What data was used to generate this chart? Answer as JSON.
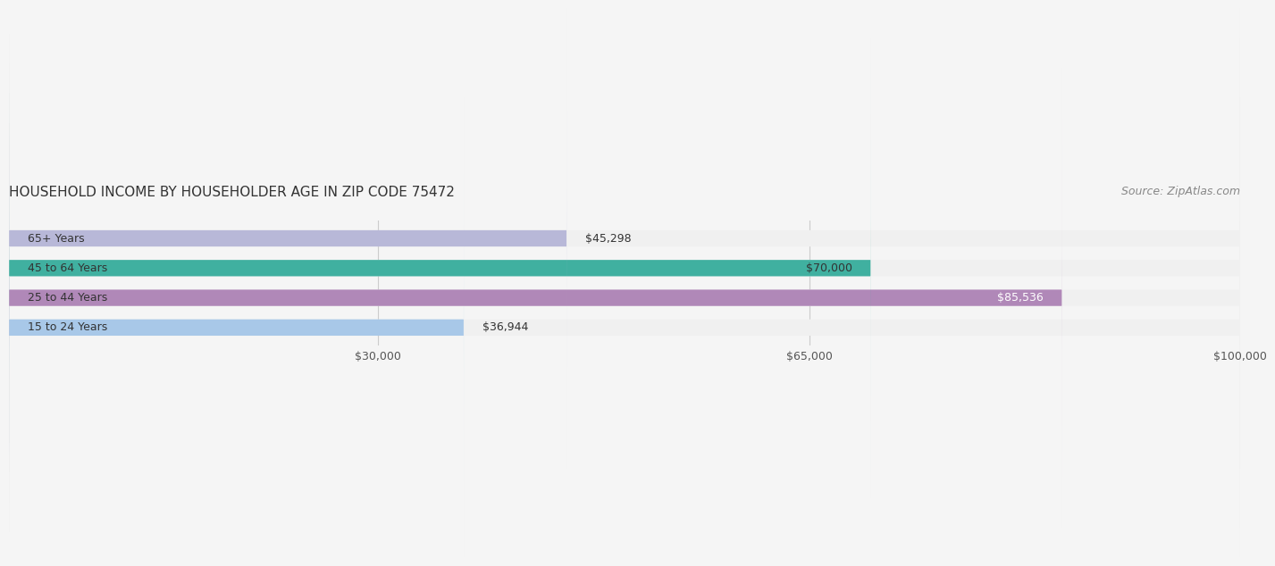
{
  "title": "HOUSEHOLD INCOME BY HOUSEHOLDER AGE IN ZIP CODE 75472",
  "source": "Source: ZipAtlas.com",
  "categories": [
    "15 to 24 Years",
    "25 to 44 Years",
    "45 to 64 Years",
    "65+ Years"
  ],
  "values": [
    36944,
    85536,
    70000,
    45298
  ],
  "bar_colors": [
    "#a8c8e8",
    "#b088b8",
    "#40b0a0",
    "#b8b8d8"
  ],
  "bar_track_color": "#f0f0f0",
  "xlim": [
    0,
    100000
  ],
  "xticks": [
    30000,
    65000,
    100000
  ],
  "xtick_labels": [
    "$30,000",
    "$65,000",
    "$100,000"
  ],
  "value_labels": [
    "$36,944",
    "$85,536",
    "$70,000",
    "$45,298"
  ],
  "value_label_colors": [
    "#333333",
    "#ffffff",
    "#333333",
    "#333333"
  ],
  "background_color": "#f5f5f5",
  "bar_height": 0.55,
  "title_fontsize": 11,
  "source_fontsize": 9,
  "label_fontsize": 9,
  "tick_fontsize": 9,
  "grid_color": "#cccccc"
}
